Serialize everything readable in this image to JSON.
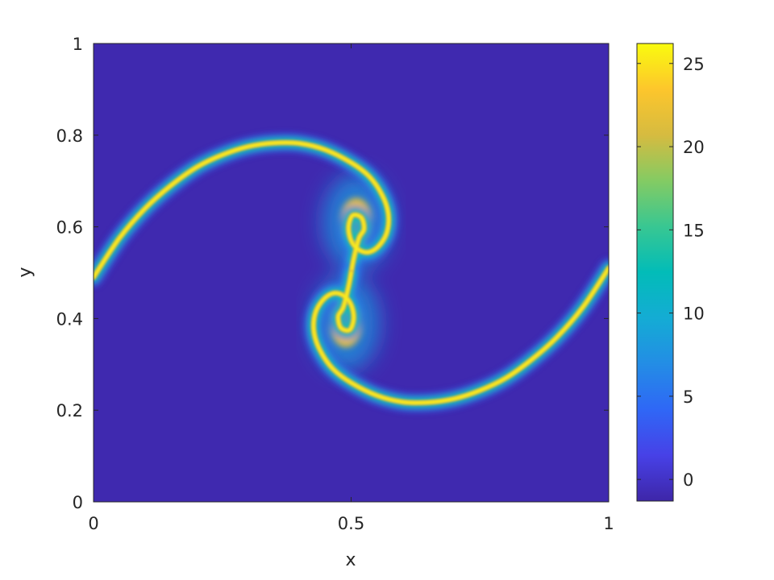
{
  "chart_data": {
    "type": "heatmap",
    "title": "",
    "xlabel": "x",
    "ylabel": "y",
    "xlim": [
      0,
      1
    ],
    "ylim": [
      0,
      1
    ],
    "x_ticks": [
      0,
      0.5,
      1
    ],
    "x_tick_labels": [
      "0",
      "0.5",
      "1"
    ],
    "y_ticks": [
      0,
      0.2,
      0.4,
      0.6,
      0.8,
      1
    ],
    "y_tick_labels": [
      "0",
      "0.2",
      "0.4",
      "0.6",
      "0.8",
      "1"
    ],
    "colorbar": {
      "range": [
        -1.3,
        26.2
      ],
      "ticks": [
        0,
        5,
        10,
        15,
        20,
        25
      ],
      "tick_labels": [
        "0",
        "5",
        "10",
        "15",
        "20",
        "25"
      ],
      "colormap": "parula"
    },
    "background_value": -1,
    "peak_value": 25.5,
    "filament": {
      "left_arm": [
        [
          0.0,
          0.49
        ],
        [
          0.05,
          0.575
        ],
        [
          0.1,
          0.64
        ],
        [
          0.15,
          0.69
        ],
        [
          0.2,
          0.73
        ],
        [
          0.25,
          0.757
        ],
        [
          0.3,
          0.775
        ],
        [
          0.35,
          0.783
        ],
        [
          0.4,
          0.782
        ],
        [
          0.45,
          0.768
        ],
        [
          0.5,
          0.74
        ],
        [
          0.535,
          0.71
        ],
        [
          0.56,
          0.67
        ],
        [
          0.572,
          0.63
        ],
        [
          0.57,
          0.59
        ],
        [
          0.555,
          0.56
        ],
        [
          0.535,
          0.545
        ],
        [
          0.515,
          0.55
        ],
        [
          0.5,
          0.57
        ],
        [
          0.495,
          0.6
        ],
        [
          0.503,
          0.625
        ],
        [
          0.52,
          0.62
        ],
        [
          0.525,
          0.595
        ],
        [
          0.515,
          0.575
        ],
        [
          0.505,
          0.53
        ],
        [
          0.5,
          0.5
        ]
      ],
      "right_arm": [
        [
          1.0,
          0.51
        ],
        [
          0.95,
          0.425
        ],
        [
          0.9,
          0.36
        ],
        [
          0.85,
          0.31
        ],
        [
          0.8,
          0.27
        ],
        [
          0.75,
          0.243
        ],
        [
          0.7,
          0.225
        ],
        [
          0.65,
          0.217
        ],
        [
          0.6,
          0.218
        ],
        [
          0.55,
          0.232
        ],
        [
          0.5,
          0.26
        ],
        [
          0.465,
          0.29
        ],
        [
          0.44,
          0.33
        ],
        [
          0.428,
          0.37
        ],
        [
          0.43,
          0.41
        ],
        [
          0.445,
          0.44
        ],
        [
          0.465,
          0.455
        ],
        [
          0.485,
          0.45
        ],
        [
          0.5,
          0.43
        ],
        [
          0.505,
          0.4
        ],
        [
          0.497,
          0.375
        ],
        [
          0.48,
          0.38
        ],
        [
          0.475,
          0.405
        ],
        [
          0.485,
          0.425
        ],
        [
          0.495,
          0.47
        ],
        [
          0.5,
          0.5
        ]
      ],
      "vortex_cores": [
        [
          0.51,
          0.61
        ],
        [
          0.49,
          0.39
        ]
      ]
    }
  }
}
